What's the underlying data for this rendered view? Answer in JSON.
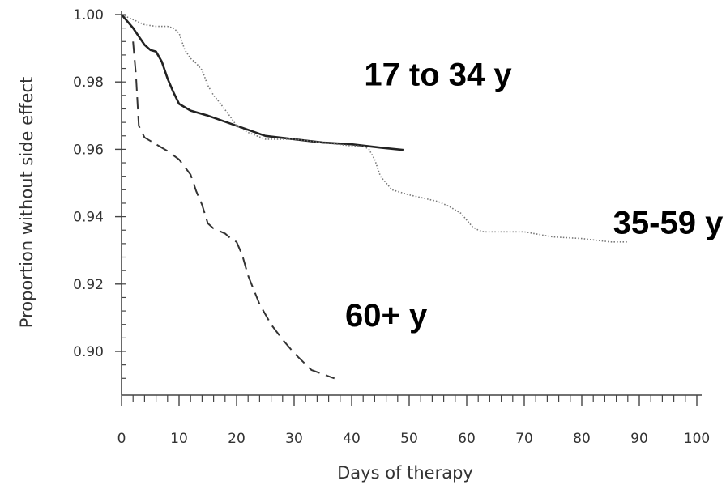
{
  "chart_data": {
    "type": "line",
    "xlabel": "Days of therapy",
    "ylabel": "Proportion without side effect",
    "xlim": [
      0,
      100
    ],
    "ylim": [
      0.89,
      1.0
    ],
    "x_ticks": [
      0,
      10,
      20,
      30,
      40,
      50,
      60,
      70,
      80,
      90,
      100
    ],
    "x_tick_labels": [
      "0",
      "10",
      "20",
      "30",
      "40",
      "50",
      "60",
      "70",
      "80",
      "90",
      "100"
    ],
    "y_ticks": [
      0.9,
      0.92,
      0.94,
      0.96,
      0.98,
      1.0
    ],
    "y_tick_labels": [
      "0.90",
      "0.92",
      "0.94",
      "0.96",
      "0.98",
      "1.00"
    ],
    "grid": false,
    "legend": "none",
    "series": [
      {
        "name": "17 to 34 y",
        "style": "solid",
        "color": "#222222",
        "x": [
          0,
          2,
          4,
          5,
          6,
          7,
          8,
          9,
          10,
          12,
          15,
          20,
          25,
          30,
          35,
          40,
          45,
          49
        ],
        "y": [
          1.0,
          0.996,
          0.991,
          0.9895,
          0.989,
          0.986,
          0.981,
          0.977,
          0.9735,
          0.9715,
          0.97,
          0.967,
          0.964,
          0.963,
          0.962,
          0.9615,
          0.9605,
          0.9598
        ]
      },
      {
        "name": "35-59 y",
        "style": "dotted",
        "color": "#777777",
        "x": [
          0,
          2,
          4,
          6,
          8,
          9,
          10,
          11,
          12,
          13,
          14,
          15,
          16,
          17,
          19,
          20,
          22,
          25,
          30,
          35,
          40,
          42,
          43,
          44,
          45,
          47,
          50,
          55,
          57,
          59,
          60,
          61,
          62,
          63,
          64,
          66,
          70,
          75,
          80,
          85,
          88
        ],
        "y": [
          1.0,
          0.9985,
          0.997,
          0.9965,
          0.9965,
          0.996,
          0.9945,
          0.9895,
          0.987,
          0.9855,
          0.9835,
          0.979,
          0.976,
          0.974,
          0.9695,
          0.967,
          0.965,
          0.963,
          0.963,
          0.962,
          0.961,
          0.961,
          0.96,
          0.957,
          0.952,
          0.948,
          0.9465,
          0.9445,
          0.943,
          0.941,
          0.939,
          0.937,
          0.936,
          0.9355,
          0.9355,
          0.9355,
          0.9355,
          0.934,
          0.9335,
          0.9325,
          0.9325
        ]
      },
      {
        "name": "60+ y",
        "style": "dashed",
        "color": "#333333",
        "x": [
          2,
          2.5,
          3,
          4,
          6,
          8,
          10,
          12,
          13,
          14,
          15,
          16,
          18,
          19,
          20,
          21,
          22,
          24,
          26,
          28,
          30,
          33,
          37
        ],
        "y": [
          0.992,
          0.982,
          0.967,
          0.9635,
          0.9615,
          0.9595,
          0.957,
          0.9525,
          0.9475,
          0.9435,
          0.938,
          0.9365,
          0.935,
          0.9335,
          0.9325,
          0.9285,
          0.9225,
          0.914,
          0.908,
          0.9035,
          0.8995,
          0.8945,
          0.892
        ]
      }
    ],
    "annotations": [
      {
        "text": "17 to 34 y",
        "x": 55,
        "y": 0.979
      },
      {
        "text": "35-59 y",
        "x": 95,
        "y": 0.935
      },
      {
        "text": "60+ y",
        "x": 46,
        "y": 0.9075
      }
    ]
  }
}
